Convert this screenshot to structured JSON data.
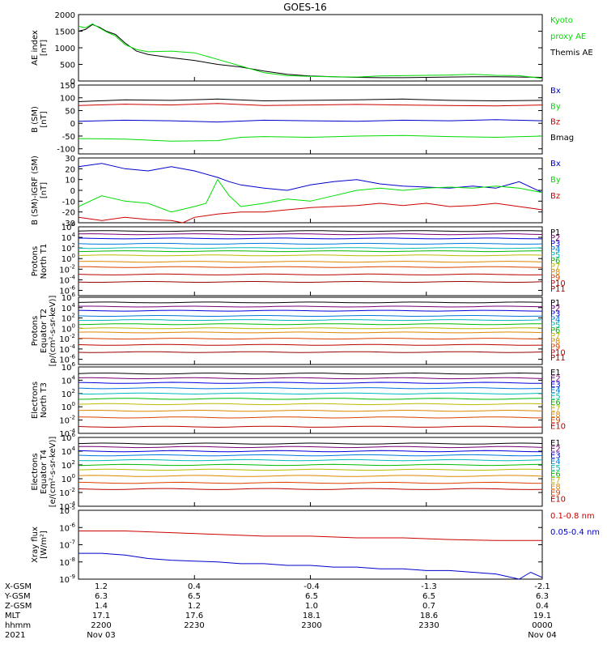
{
  "title": "GOES-16",
  "colors": {
    "black": "#000000",
    "green": "#00dd00",
    "blue": "#0000cc",
    "red": "#cc0000",
    "p": [
      "#000000",
      "#770077",
      "#0000dd",
      "#0077dd",
      "#00bbbb",
      "#00bb00",
      "#bbbb00",
      "#dd8800",
      "#dd4400",
      "#bb0000",
      "#990000"
    ]
  },
  "chart_data": [
    {
      "type": "line",
      "ylabel": [
        "AE index",
        "[nT]"
      ],
      "ylim": [
        0,
        2000
      ],
      "yticks": [
        "2000",
        "1500",
        "1000",
        "500",
        "0"
      ],
      "yvals": [
        2000,
        1500,
        1000,
        500,
        0
      ],
      "legend": [
        {
          "label": "Kyoto",
          "color": "#00dd00"
        },
        {
          "label": "proxy AE",
          "color": "#00dd00"
        },
        {
          "label": "Themis AE",
          "color": "#000000"
        }
      ],
      "series": [
        {
          "color": "#000000",
          "x": [
            0,
            3,
            6,
            9,
            12,
            16,
            20,
            25,
            30,
            40,
            50,
            60,
            70,
            80,
            90,
            100,
            110,
            115,
            120,
            130,
            140,
            150,
            160,
            170,
            180,
            190,
            200
          ],
          "y": [
            1500,
            1550,
            1700,
            1620,
            1500,
            1400,
            1150,
            900,
            800,
            700,
            620,
            500,
            420,
            300,
            200,
            150,
            130,
            120,
            110,
            100,
            100,
            110,
            120,
            130,
            130,
            120,
            110
          ]
        },
        {
          "name": "Kyoto proxy AE",
          "color": "#00dd00",
          "x": [
            0,
            3,
            6,
            9,
            12,
            16,
            20,
            25,
            30,
            40,
            50,
            60,
            70,
            80,
            90,
            100,
            110,
            120,
            130,
            140,
            150,
            160,
            170,
            180,
            190,
            200
          ],
          "y": [
            1650,
            1600,
            1720,
            1600,
            1480,
            1350,
            1100,
            950,
            880,
            900,
            850,
            650,
            450,
            250,
            160,
            140,
            130,
            120,
            150,
            160,
            170,
            180,
            200,
            170,
            160,
            80
          ]
        }
      ]
    },
    {
      "type": "line",
      "ylabel": [
        "B (SM)",
        "[nT]"
      ],
      "ylim": [
        -120,
        150
      ],
      "yticks": [
        "150",
        "100",
        "50",
        "0",
        "-50",
        "-100"
      ],
      "yvals": [
        150,
        100,
        50,
        0,
        -50,
        -100
      ],
      "legend": [
        {
          "label": "Bx",
          "color": "#0000cc"
        },
        {
          "label": "By",
          "color": "#00dd00"
        },
        {
          "label": "Bz",
          "color": "#cc0000"
        },
        {
          "label": "Bmag",
          "color": "#000000"
        }
      ],
      "series": [
        {
          "color": "#000000",
          "x": [
            0,
            20,
            40,
            60,
            80,
            100,
            120,
            140,
            160,
            180,
            200
          ],
          "y": [
            85,
            92,
            90,
            95,
            88,
            90,
            92,
            95,
            90,
            88,
            90
          ]
        },
        {
          "color": "#cc0000",
          "x": [
            0,
            20,
            40,
            60,
            80,
            100,
            120,
            140,
            160,
            180,
            200
          ],
          "y": [
            70,
            75,
            72,
            78,
            70,
            72,
            74,
            72,
            70,
            68,
            72
          ]
        },
        {
          "color": "#0000cc",
          "x": [
            0,
            20,
            40,
            60,
            80,
            100,
            120,
            140,
            160,
            180,
            200
          ],
          "y": [
            8,
            12,
            10,
            5,
            12,
            10,
            8,
            12,
            10,
            14,
            10
          ]
        },
        {
          "color": "#00dd00",
          "x": [
            0,
            20,
            40,
            60,
            70,
            80,
            100,
            120,
            140,
            160,
            180,
            200
          ],
          "y": [
            -60,
            -62,
            -70,
            -68,
            -55,
            -52,
            -55,
            -50,
            -48,
            -52,
            -55,
            -50
          ]
        }
      ]
    },
    {
      "type": "line",
      "ylabel": [
        "B (SM)-IGRF (SM)",
        "[nT]"
      ],
      "ylim": [
        -30,
        30
      ],
      "yticks": [
        "30",
        "20",
        "10",
        "0",
        "-10",
        "-20",
        "-30"
      ],
      "yvals": [
        30,
        20,
        10,
        0,
        -10,
        -20,
        -30
      ],
      "legend": [
        {
          "label": "Bx",
          "color": "#0000cc"
        },
        {
          "label": "By",
          "color": "#00dd00"
        },
        {
          "label": "Bz",
          "color": "#cc0000"
        }
      ],
      "series": [
        {
          "color": "#0000cc",
          "x": [
            0,
            10,
            20,
            30,
            40,
            50,
            60,
            65,
            70,
            80,
            90,
            100,
            110,
            120,
            130,
            140,
            150,
            160,
            170,
            180,
            190,
            200
          ],
          "y": [
            22,
            25,
            20,
            18,
            22,
            18,
            12,
            8,
            5,
            2,
            0,
            5,
            8,
            10,
            6,
            4,
            3,
            2,
            4,
            2,
            8,
            -2
          ]
        },
        {
          "color": "#00dd00",
          "x": [
            0,
            10,
            20,
            30,
            40,
            50,
            55,
            60,
            65,
            70,
            80,
            90,
            100,
            110,
            120,
            130,
            140,
            150,
            160,
            170,
            180,
            190,
            200
          ],
          "y": [
            -15,
            -5,
            -10,
            -12,
            -20,
            -15,
            -12,
            10,
            -5,
            -15,
            -12,
            -8,
            -10,
            -5,
            0,
            2,
            0,
            2,
            3,
            2,
            4,
            2,
            -2
          ]
        },
        {
          "color": "#cc0000",
          "x": [
            0,
            10,
            20,
            30,
            40,
            45,
            50,
            60,
            70,
            80,
            90,
            100,
            110,
            120,
            130,
            140,
            150,
            160,
            170,
            180,
            190,
            200
          ],
          "y": [
            -25,
            -28,
            -25,
            -27,
            -28,
            -30,
            -25,
            -22,
            -20,
            -20,
            -18,
            -16,
            -15,
            -14,
            -12,
            -14,
            -12,
            -15,
            -14,
            -12,
            -15,
            -18
          ]
        }
      ]
    },
    {
      "type": "line",
      "log": true,
      "ylabel": [
        "Protons",
        "North T1"
      ],
      "ylim": [
        -7,
        6
      ],
      "ylog_ticks": [
        6,
        4,
        2,
        0,
        -2,
        -4,
        -6
      ],
      "legend": [
        {
          "label": "P1"
        },
        {
          "label": "P2"
        },
        {
          "label": "P3"
        },
        {
          "label": "P4"
        },
        {
          "label": "P5"
        },
        {
          "label": "P6"
        },
        {
          "label": "P7"
        },
        {
          "label": "P8"
        },
        {
          "label": "P9"
        },
        {
          "label": "P10"
        },
        {
          "label": "P11"
        }
      ],
      "levels": [
        5.2,
        4.6,
        3.8,
        2.8,
        2.0,
        1.4,
        0.6,
        -0.6,
        -1.6,
        -3.0,
        -4.4
      ]
    },
    {
      "type": "line",
      "log": true,
      "ylabel": [
        "Protons",
        "Equator T2",
        "[p/(cm²-s-sr-keV)]"
      ],
      "ylim": [
        -7,
        6
      ],
      "ylog_ticks": [
        6,
        4,
        2,
        0,
        -2,
        -4,
        -6
      ],
      "legend": [
        {
          "label": "P1"
        },
        {
          "label": "P2"
        },
        {
          "label": "P3"
        },
        {
          "label": "P4"
        },
        {
          "label": "P5"
        },
        {
          "label": "P6"
        },
        {
          "label": "P7"
        },
        {
          "label": "P8"
        },
        {
          "label": "P9"
        },
        {
          "label": "P10"
        },
        {
          "label": "P11"
        }
      ],
      "levels": [
        5.0,
        4.2,
        3.4,
        2.4,
        1.6,
        0.8,
        0.0,
        -0.8,
        -2.0,
        -3.2,
        -4.6
      ]
    },
    {
      "type": "line",
      "log": true,
      "ylabel": [
        "Electrons",
        "North T3"
      ],
      "ylim": [
        -4,
        6
      ],
      "ylog_ticks": [
        6,
        4,
        2,
        0,
        -2,
        -4
      ],
      "legend": [
        {
          "label": "E1"
        },
        {
          "label": "E2"
        },
        {
          "label": "E3"
        },
        {
          "label": "E4"
        },
        {
          "label": "E5"
        },
        {
          "label": "E6"
        },
        {
          "label": "E7"
        },
        {
          "label": "E8"
        },
        {
          "label": "E9"
        },
        {
          "label": "E10"
        }
      ],
      "levels": [
        5.0,
        4.3,
        3.6,
        2.8,
        2.0,
        1.2,
        0.4,
        -0.6,
        -1.6,
        -3.0
      ]
    },
    {
      "type": "line",
      "log": true,
      "ylabel": [
        "Electrons",
        "Equator T4",
        "[e/(cm²-s-sr-keV)]"
      ],
      "ylim": [
        -4,
        6
      ],
      "ylog_ticks": [
        6,
        4,
        2,
        0,
        -2,
        -4
      ],
      "legend": [
        {
          "label": "E1"
        },
        {
          "label": "E2"
        },
        {
          "label": "E3"
        },
        {
          "label": "E4"
        },
        {
          "label": "E5"
        },
        {
          "label": "E6"
        },
        {
          "label": "E7"
        },
        {
          "label": "E8"
        },
        {
          "label": "E9"
        },
        {
          "label": "E10"
        }
      ],
      "levels": [
        5.1,
        4.6,
        4.0,
        3.4,
        2.7,
        2.0,
        1.3,
        0.4,
        -0.6,
        -1.5
      ]
    },
    {
      "type": "line",
      "log": true,
      "ylabel": [
        "Xray flux",
        "[W/m²]"
      ],
      "ylim": [
        -9,
        -5
      ],
      "ylog_ticks": [
        -5,
        -6,
        -7,
        -8,
        -9
      ],
      "legend": [
        {
          "label": "0.1-0.8 nm",
          "color": "#cc0000"
        },
        {
          "label": "0.05-0.4 nm",
          "color": "#0000cc"
        }
      ],
      "series": [
        {
          "color": "#cc0000",
          "x": [
            0,
            20,
            40,
            60,
            80,
            100,
            120,
            140,
            160,
            180,
            200
          ],
          "y": [
            -6.2,
            -6.2,
            -6.3,
            -6.4,
            -6.5,
            -6.5,
            -6.6,
            -6.6,
            -6.7,
            -6.75,
            -6.75
          ]
        },
        {
          "color": "#0000cc",
          "x": [
            0,
            10,
            20,
            30,
            40,
            50,
            60,
            70,
            80,
            90,
            100,
            110,
            120,
            130,
            140,
            150,
            160,
            170,
            180,
            190,
            195,
            200
          ],
          "y": [
            -7.5,
            -7.5,
            -7.6,
            -7.8,
            -7.9,
            -7.95,
            -8.0,
            -8.1,
            -8.1,
            -8.2,
            -8.2,
            -8.3,
            -8.3,
            -8.4,
            -8.4,
            -8.5,
            -8.5,
            -8.6,
            -8.7,
            -9.0,
            -8.6,
            -8.9
          ]
        }
      ]
    }
  ],
  "xaxis": {
    "rows": [
      {
        "label": "X-GSM",
        "vals": [
          "1.2",
          "0.4",
          "-0.4",
          "-1.3",
          "-2.1"
        ]
      },
      {
        "label": "Y-GSM",
        "vals": [
          "6.3",
          "6.5",
          "6.5",
          "6.5",
          "6.3"
        ]
      },
      {
        "label": "Z-GSM",
        "vals": [
          "1.4",
          "1.2",
          "1.0",
          "0.7",
          "0.4"
        ]
      },
      {
        "label": "MLT",
        "vals": [
          "17.1",
          "17.6",
          "18.1",
          "18.6",
          "19.1"
        ]
      },
      {
        "label": "hhmm",
        "vals": [
          "2200",
          "2230",
          "2300",
          "2330",
          "0000"
        ]
      },
      {
        "label": "2021",
        "vals": [
          "Nov 03",
          "",
          "",
          "",
          "Nov 04"
        ]
      }
    ]
  }
}
